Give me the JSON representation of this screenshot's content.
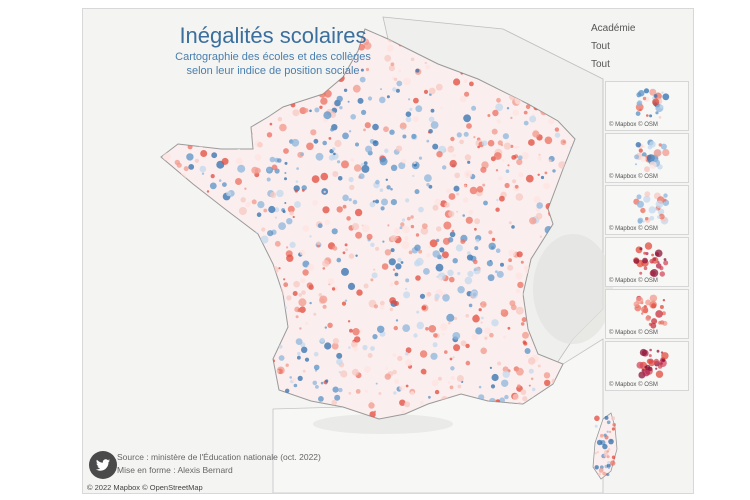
{
  "title": "Inégalités scolaires",
  "subtitle_line1": "Cartographie des écoles et des collèges",
  "subtitle_line2": "selon leur indice de position sociale",
  "controls": {
    "label": "Académie",
    "filter1": "Tout",
    "filter2": "Tout"
  },
  "insets": [
    {
      "attribution": "© Mapbox © OSM",
      "tone": "mixed"
    },
    {
      "attribution": "© Mapbox © OSM",
      "tone": "mixed"
    },
    {
      "attribution": "© Mapbox © OSM",
      "tone": "light"
    },
    {
      "attribution": "© Mapbox © OSM",
      "tone": "dark"
    },
    {
      "attribution": "© Mapbox © OSM",
      "tone": "red"
    },
    {
      "attribution": "© Mapbox © OSM",
      "tone": "dark"
    }
  ],
  "source": "Source : ministère de l'Éducation nationale (oct. 2022)",
  "credit": "Mise en forme : Alexis Bernard",
  "footer": "© 2022 Mapbox © OpenStreetMap",
  "colors": {
    "high": "#2f6fad",
    "low": "#e14b3c",
    "mid": "#f7c8c2",
    "border": "#9a9a9a"
  },
  "icons": {
    "social": "twitter-icon"
  }
}
